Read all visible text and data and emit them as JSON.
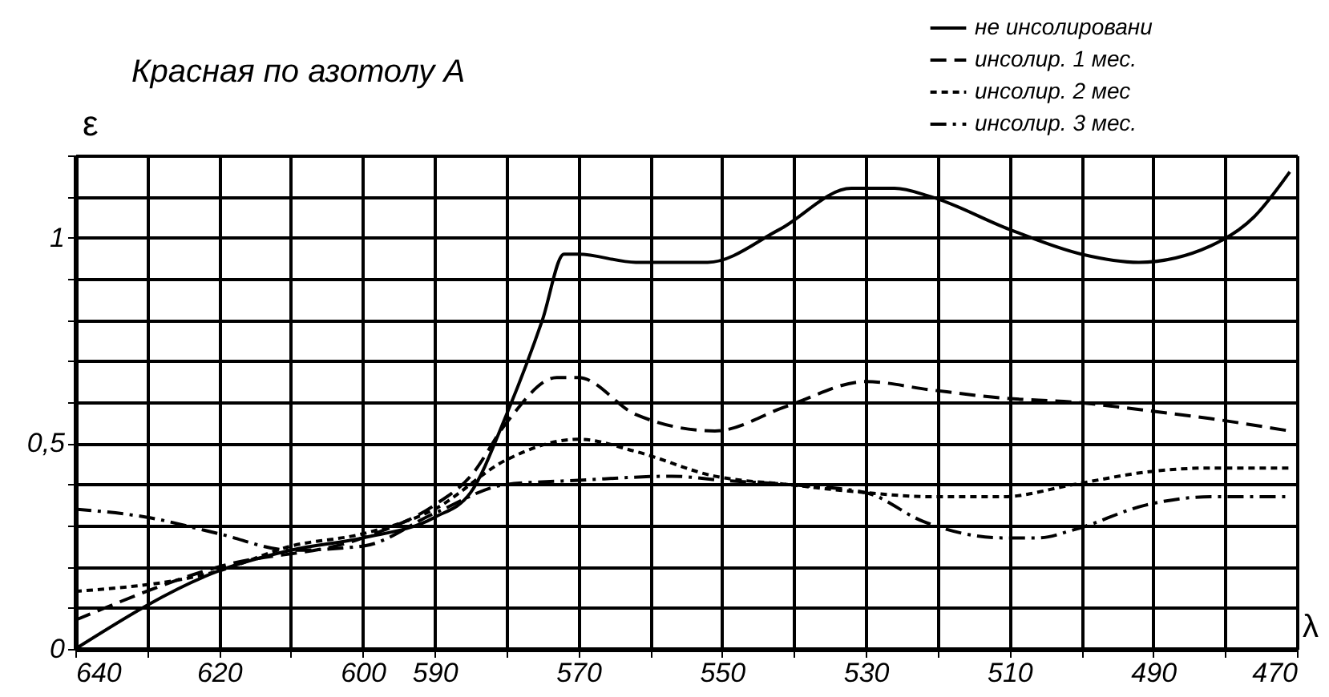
{
  "chart_data": {
    "type": "line",
    "title": "Красная по азотолу А",
    "xlabel": "λ",
    "ylabel": "ε",
    "xlim": [
      640,
      470
    ],
    "ylim": [
      0,
      1.2
    ],
    "xticks": [
      640,
      {
        "value": 630,
        "label": null
      },
      620,
      {
        "value": 610,
        "label": null
      },
      600,
      590,
      {
        "value": 580,
        "label": null
      },
      570,
      {
        "value": 560,
        "label": null
      },
      550,
      {
        "value": 540,
        "label": null
      },
      530,
      {
        "value": 520,
        "label": null
      },
      510,
      {
        "value": 500,
        "label": null
      },
      490,
      {
        "value": 480,
        "label": null
      },
      470
    ],
    "yticks": [
      0,
      {
        "value": 0.1,
        "label": null
      },
      {
        "value": 0.2,
        "label": null
      },
      {
        "value": 0.3,
        "label": null
      },
      {
        "value": 0.4,
        "label": null
      },
      {
        "value": 0.5,
        "label": "0,5"
      },
      {
        "value": 0.6,
        "label": null
      },
      {
        "value": 0.7,
        "label": null
      },
      {
        "value": 0.8,
        "label": null
      },
      {
        "value": 0.9,
        "label": null
      },
      1,
      {
        "value": 1.1,
        "label": null
      },
      {
        "value": 1.2,
        "label": null
      }
    ],
    "grid": true,
    "legend": "top right",
    "series": [
      {
        "name": "не инсолировани",
        "color": "#000000",
        "line_style": "solid",
        "x": [
          640,
          620,
          610,
          600,
          590,
          585,
          580,
          575,
          572,
          570,
          562,
          552,
          542,
          532,
          526,
          521,
          510,
          500,
          492,
          482,
          476,
          471
        ],
        "values": [
          0,
          0.19,
          0.24,
          0.27,
          0.32,
          0.38,
          0.57,
          0.8,
          0.96,
          0.96,
          0.94,
          0.94,
          1.02,
          1.12,
          1.12,
          1.1,
          1.02,
          0.96,
          0.94,
          0.98,
          1.05,
          1.16
        ]
      },
      {
        "name": "инсолир. 1 мес.",
        "color": "#000000",
        "line_style": "dashed",
        "x": [
          640,
          620,
          600,
          590,
          585,
          580,
          573,
          570,
          562,
          551,
          541,
          530,
          521,
          511,
          501,
          491,
          482,
          471
        ],
        "values": [
          0.07,
          0.2,
          0.27,
          0.35,
          0.42,
          0.55,
          0.66,
          0.66,
          0.57,
          0.53,
          0.59,
          0.65,
          0.63,
          0.61,
          0.6,
          0.58,
          0.56,
          0.53
        ]
      },
      {
        "name": "инсолир. 2 мес",
        "color": "#000000",
        "line_style": "dotted",
        "x": [
          640,
          620,
          610,
          600,
          590,
          580,
          570,
          562,
          551,
          541,
          530,
          521,
          511,
          501,
          491,
          482,
          471
        ],
        "values": [
          0.14,
          0.19,
          0.25,
          0.28,
          0.34,
          0.46,
          0.51,
          0.48,
          0.42,
          0.4,
          0.38,
          0.37,
          0.37,
          0.4,
          0.43,
          0.44,
          0.44
        ]
      },
      {
        "name": "инсолир. 3 мес.",
        "color": "#000000",
        "line_style": "dashdot",
        "x": [
          640,
          630,
          620,
          610,
          600,
          590,
          580,
          570,
          557,
          550,
          541,
          530,
          522,
          511,
          506,
          501,
          491,
          482,
          471
        ],
        "values": [
          0.34,
          0.32,
          0.28,
          0.24,
          0.25,
          0.33,
          0.4,
          0.41,
          0.42,
          0.41,
          0.4,
          0.38,
          0.31,
          0.27,
          0.27,
          0.29,
          0.35,
          0.37,
          0.37
        ]
      }
    ]
  }
}
